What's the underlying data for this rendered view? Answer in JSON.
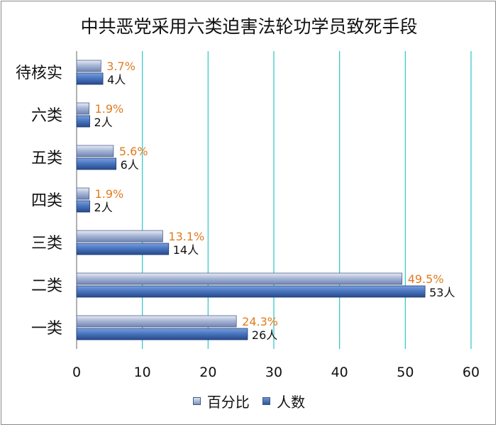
{
  "chart_data": {
    "type": "bar",
    "orientation": "horizontal",
    "title": "中共恶党采用六类迫害法轮功学员致死手段",
    "categories": [
      "一类",
      "二类",
      "三类",
      "四类",
      "五类",
      "六类",
      "待核实"
    ],
    "series": [
      {
        "name": "百分比",
        "values": [
          24.3,
          49.5,
          13.1,
          1.9,
          5.6,
          1.9,
          3.7
        ],
        "labels": [
          "24.3%",
          "49.5%",
          "13.1%",
          "1.9%",
          "5.6%",
          "1.9%",
          "3.7%"
        ],
        "color": "#8ea2c8",
        "label_color": "#e07b1f"
      },
      {
        "name": "人数",
        "values": [
          26,
          53,
          14,
          2,
          6,
          2,
          4
        ],
        "labels": [
          "26人",
          "53人",
          "14人",
          "2人",
          "6人",
          "2人",
          "4人"
        ],
        "color": "#3e6db5",
        "label_color": "#111111"
      }
    ],
    "xlim": [
      0,
      60
    ],
    "x_ticks": [
      "0",
      "10",
      "20",
      "30",
      "40",
      "50",
      "60"
    ],
    "gridlines": true,
    "grid_color": "#2cc4c4",
    "legend_position": "bottom"
  }
}
